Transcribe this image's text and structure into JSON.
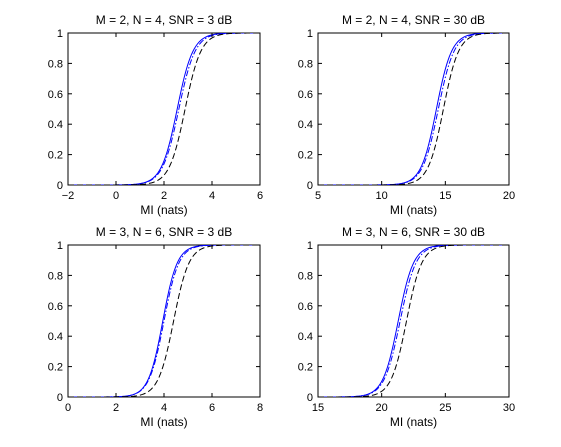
{
  "chart_data": [
    {
      "type": "line",
      "title": "M = 2, N = 4, SNR = 3 dB",
      "xlabel": "MI (nats)",
      "ylabel": "",
      "xlim": [
        -2,
        6
      ],
      "ylim": [
        0,
        1
      ],
      "xticks": [
        -2,
        0,
        2,
        4,
        6
      ],
      "xtick_labels": [
        "−2",
        "0",
        "2",
        "4",
        "6"
      ],
      "yticks": [
        0,
        0.2,
        0.4,
        0.6,
        0.8,
        1
      ],
      "ytick_labels": [
        "0",
        "0.2",
        "0.4",
        "0.6",
        "0.8",
        "1"
      ],
      "grid": false,
      "series": [
        {
          "color": "#0000ff",
          "dash": "solid",
          "center": 2.55,
          "width": 0.33
        },
        {
          "color": "#0000ff",
          "dash": "dashdot",
          "center": 2.62,
          "width": 0.34
        },
        {
          "color": "#000000",
          "dash": "dashed",
          "center": 2.88,
          "width": 0.33
        }
      ]
    },
    {
      "type": "line",
      "title": "M = 2, N = 4, SNR = 30 dB",
      "xlabel": "MI (nats)",
      "ylabel": "",
      "xlim": [
        5,
        20
      ],
      "ylim": [
        0,
        1
      ],
      "xticks": [
        5,
        10,
        15,
        20
      ],
      "xtick_labels": [
        "5",
        "10",
        "15",
        "20"
      ],
      "yticks": [
        0,
        0.2,
        0.4,
        0.6,
        0.8,
        1
      ],
      "ytick_labels": [
        "0",
        "0.2",
        "0.4",
        "0.6",
        "0.8",
        "1"
      ],
      "grid": false,
      "series": [
        {
          "color": "#0000ff",
          "dash": "solid",
          "center": 14.3,
          "width": 0.6
        },
        {
          "color": "#0000ff",
          "dash": "dashdot",
          "center": 14.45,
          "width": 0.62
        },
        {
          "color": "#000000",
          "dash": "dashed",
          "center": 14.85,
          "width": 0.6
        }
      ]
    },
    {
      "type": "line",
      "title": "M = 3, N = 6, SNR = 3 dB",
      "xlabel": "MI (nats)",
      "ylabel": "",
      "xlim": [
        0,
        8
      ],
      "ylim": [
        0,
        1
      ],
      "xticks": [
        0,
        2,
        4,
        6,
        8
      ],
      "xtick_labels": [
        "0",
        "2",
        "4",
        "6",
        "8"
      ],
      "yticks": [
        0,
        0.2,
        0.4,
        0.6,
        0.8,
        1
      ],
      "ytick_labels": [
        "0",
        "0.2",
        "0.4",
        "0.6",
        "0.8",
        "1"
      ],
      "grid": false,
      "series": [
        {
          "color": "#0000ff",
          "dash": "solid",
          "center": 3.95,
          "width": 0.3
        },
        {
          "color": "#0000ff",
          "dash": "dashdot",
          "center": 4.0,
          "width": 0.31
        },
        {
          "color": "#000000",
          "dash": "dashed",
          "center": 4.4,
          "width": 0.32
        }
      ]
    },
    {
      "type": "line",
      "title": "M = 3, N = 6, SNR = 30 dB",
      "xlabel": "MI (nats)",
      "ylabel": "",
      "xlim": [
        15,
        30
      ],
      "ylim": [
        0,
        1
      ],
      "xticks": [
        15,
        20,
        25,
        30
      ],
      "xtick_labels": [
        "15",
        "20",
        "25",
        "30"
      ],
      "yticks": [
        0,
        0.2,
        0.4,
        0.6,
        0.8,
        1
      ],
      "ytick_labels": [
        "0",
        "0.2",
        "0.4",
        "0.6",
        "0.8",
        "1"
      ],
      "grid": false,
      "series": [
        {
          "color": "#0000ff",
          "dash": "solid",
          "center": 21.3,
          "width": 0.6
        },
        {
          "color": "#0000ff",
          "dash": "dashdot",
          "center": 21.45,
          "width": 0.62
        },
        {
          "color": "#000000",
          "dash": "dashed",
          "center": 21.95,
          "width": 0.6
        }
      ]
    }
  ]
}
